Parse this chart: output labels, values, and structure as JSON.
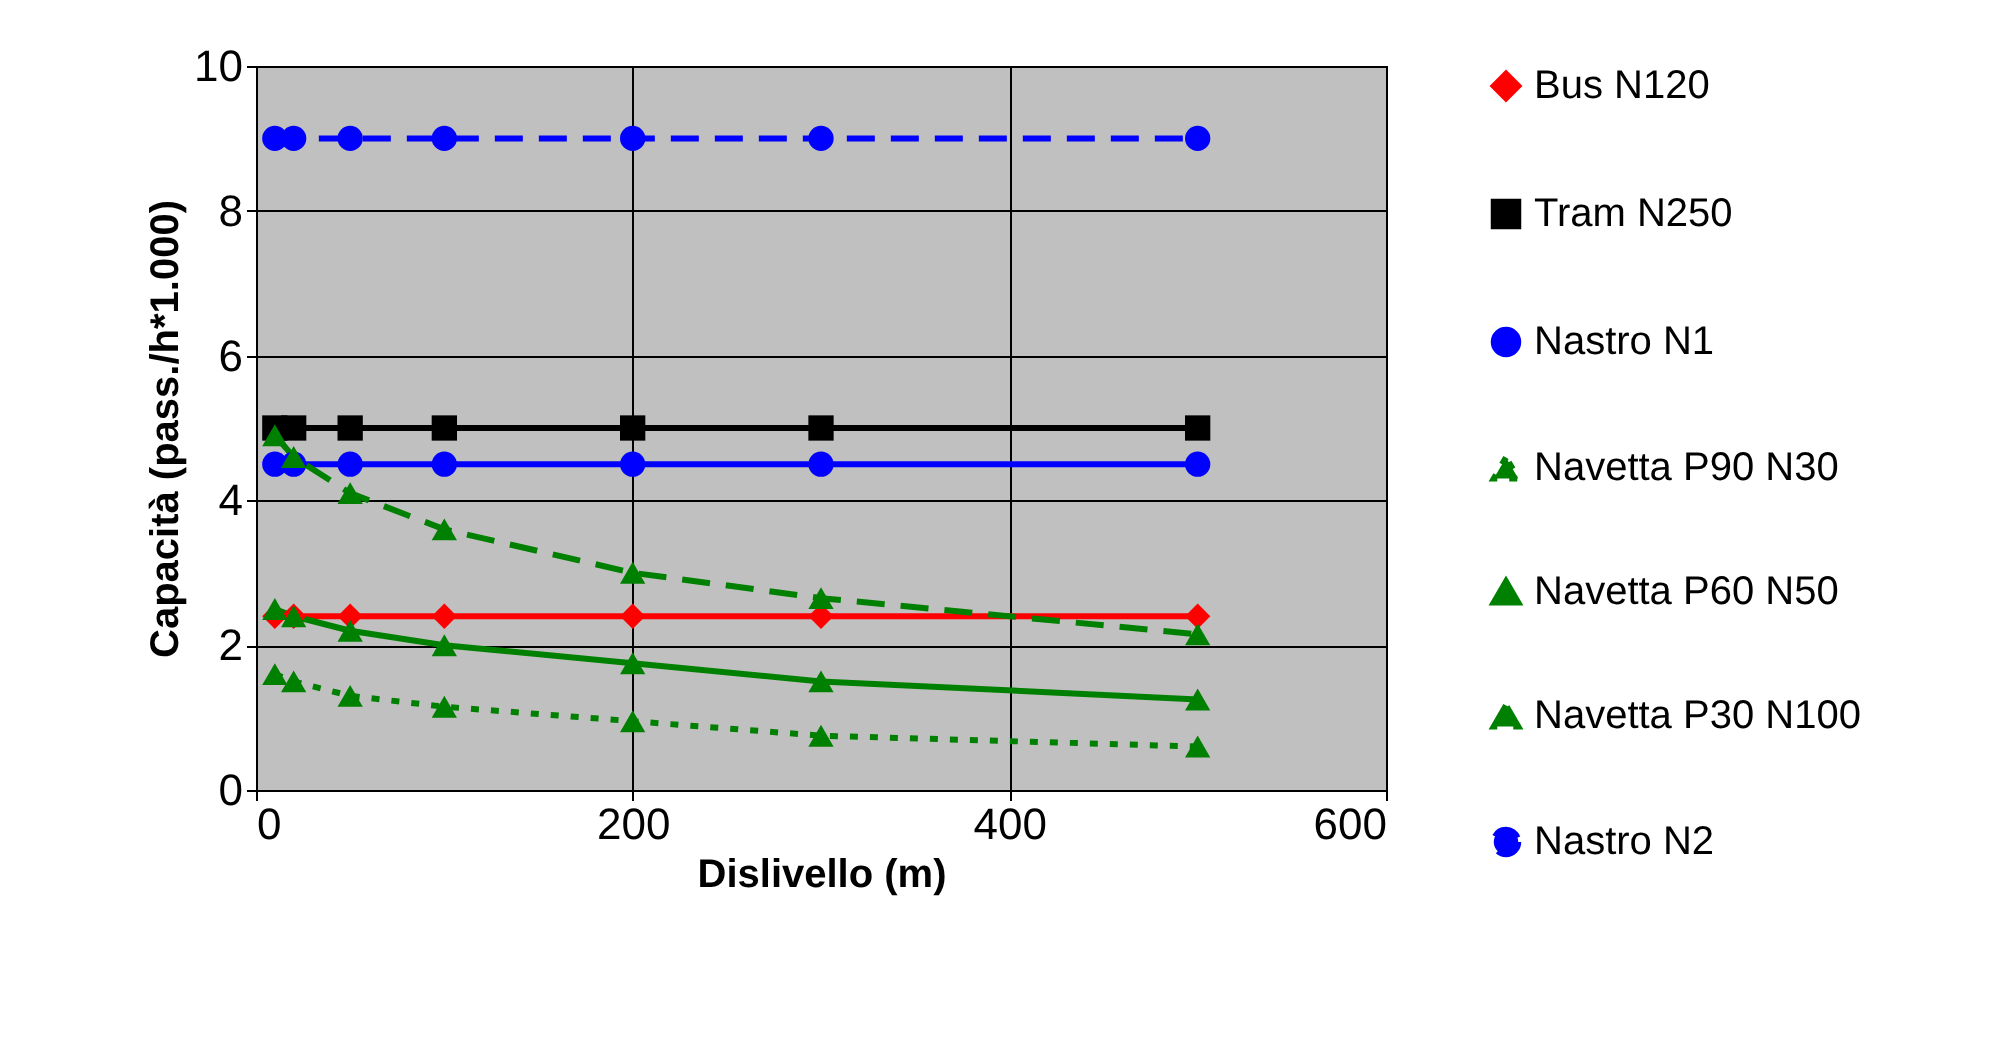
{
  "chart_data": {
    "type": "line",
    "xlabel": "Dislivello (m)",
    "ylabel": "Capacità (pass./h*1.000)",
    "x": [
      10,
      20,
      50,
      100,
      200,
      300,
      500
    ],
    "xlim": [
      0,
      600
    ],
    "xticks": [
      0,
      200,
      400,
      600
    ],
    "ylim": [
      0,
      10
    ],
    "yticks": [
      0,
      2,
      4,
      6,
      8,
      10
    ],
    "grid": true,
    "legend": "right",
    "series": [
      {
        "name": "Bus N120",
        "color": "#ff0000",
        "marker": "diamond",
        "line_style": "solid",
        "values": [
          2.4,
          2.4,
          2.4,
          2.4,
          2.4,
          2.4,
          2.4
        ]
      },
      {
        "name": "Tram N250",
        "color": "#000000",
        "marker": "square",
        "line_style": "solid",
        "values": [
          5,
          5,
          5,
          5,
          5,
          5,
          5
        ]
      },
      {
        "name": "Nastro N1",
        "color": "#0000ff",
        "marker": "circle",
        "line_style": "solid",
        "values": [
          4.5,
          4.5,
          4.5,
          4.5,
          4.5,
          4.5,
          4.5
        ]
      },
      {
        "name": "Navetta P90 N30",
        "color": "#008000",
        "marker": "triangle",
        "line_style": "dotted",
        "values": [
          1.6,
          1.5,
          1.3,
          1.15,
          0.95,
          0.75,
          0.6
        ]
      },
      {
        "name": "Navetta P60 N50",
        "color": "#008000",
        "marker": "triangle",
        "line_style": "solid",
        "values": [
          2.5,
          2.4,
          2.2,
          2.0,
          1.75,
          1.5,
          1.25
        ]
      },
      {
        "name": "Navetta P30 N100",
        "color": "#008000",
        "marker": "triangle",
        "line_style": "dashed",
        "values": [
          4.9,
          4.6,
          4.1,
          3.6,
          3.0,
          2.65,
          2.15
        ]
      },
      {
        "name": "Nastro N2",
        "color": "#0000ff",
        "marker": "circle",
        "line_style": "dashed",
        "values": [
          9,
          9,
          9,
          9,
          9,
          9,
          9
        ]
      }
    ]
  }
}
